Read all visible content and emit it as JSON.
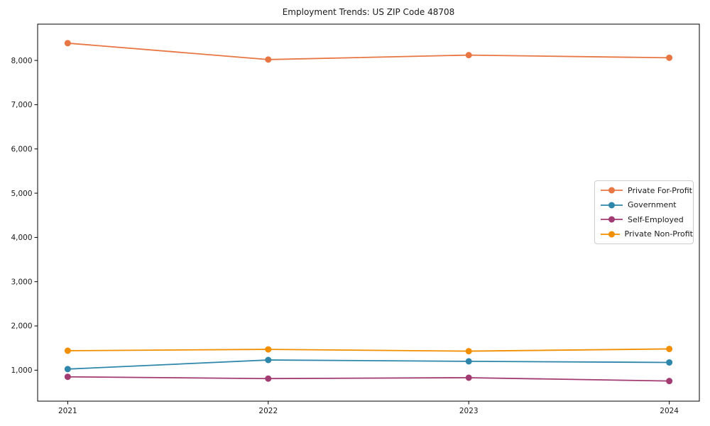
{
  "chart_data": {
    "type": "line",
    "title": "Employment Trends: US ZIP Code 48708",
    "x": [
      2021,
      2022,
      2023,
      2024
    ],
    "x_tick_labels": [
      "2021",
      "2022",
      "2023",
      "2024"
    ],
    "y_ticks": [
      1000,
      2000,
      3000,
      4000,
      5000,
      6000,
      7000,
      8000
    ],
    "y_tick_labels": [
      "1,000",
      "2,000",
      "3,000",
      "4,000",
      "5,000",
      "6,000",
      "7,000",
      "8,000"
    ],
    "xlim": [
      2020.85,
      2024.15
    ],
    "ylim": [
      300,
      8820
    ],
    "grid": false,
    "legend_position": "center-right",
    "axis_color": "#000000",
    "text_color": "#1a1a1a",
    "series": [
      {
        "name": "Private For-Profit",
        "color": "#E87643",
        "values": [
          8390,
          8020,
          8120,
          8060
        ]
      },
      {
        "name": "Government",
        "color": "#2E86AB",
        "values": [
          1025,
          1230,
          1200,
          1175
        ]
      },
      {
        "name": "Self-Employed",
        "color": "#A23B72",
        "values": [
          850,
          810,
          830,
          755
        ]
      },
      {
        "name": "Private Non-Profit",
        "color": "#F18F01",
        "values": [
          1440,
          1470,
          1430,
          1480
        ]
      }
    ]
  }
}
